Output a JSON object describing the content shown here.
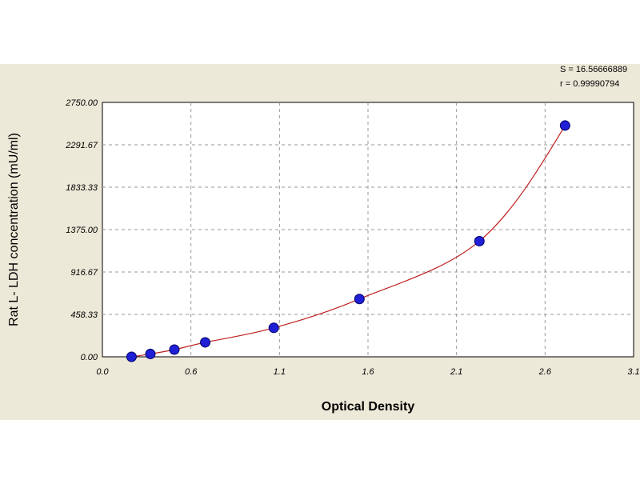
{
  "chart_data": {
    "type": "scatter",
    "title": "",
    "xlabel": "Optical Density",
    "ylabel": "Rat L- LDH concentration (mU/ml)",
    "xlim": [
      0.0,
      3.1
    ],
    "ylim": [
      0.0,
      2750.0
    ],
    "x_ticks": [
      "0.0",
      "0.6",
      "1.1",
      "1.6",
      "2.1",
      "2.6",
      "3.1"
    ],
    "y_ticks": [
      "0.00",
      "458.33",
      "916.67",
      "1375.00",
      "1833.33",
      "2291.67",
      "2750.00"
    ],
    "grid": true,
    "fit_statistics": {
      "s_label": "S = 16.56666889",
      "r_label": "r = 0.99990794"
    },
    "series": [
      {
        "points": [
          {
            "x": 0.17,
            "y": 0
          },
          {
            "x": 0.28,
            "y": 31
          },
          {
            "x": 0.42,
            "y": 78
          },
          {
            "x": 0.6,
            "y": 156
          },
          {
            "x": 1.0,
            "y": 313
          },
          {
            "x": 1.5,
            "y": 625
          },
          {
            "x": 2.2,
            "y": 1250
          },
          {
            "x": 2.7,
            "y": 2500
          }
        ],
        "color": "#1f1fd6"
      }
    ],
    "fit_curve_color": "#c02020"
  }
}
